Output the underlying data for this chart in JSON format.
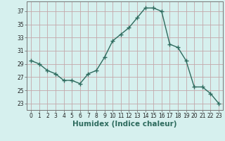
{
  "x": [
    0,
    1,
    2,
    3,
    4,
    5,
    6,
    7,
    8,
    9,
    10,
    11,
    12,
    13,
    14,
    15,
    16,
    17,
    18,
    19,
    20,
    21,
    22,
    23
  ],
  "y": [
    29.5,
    29.0,
    28.0,
    27.5,
    26.5,
    26.5,
    26.0,
    27.5,
    28.0,
    30.0,
    32.5,
    33.5,
    34.5,
    36.0,
    37.5,
    37.5,
    37.0,
    32.0,
    31.5,
    29.5,
    25.5,
    25.5,
    24.5,
    23.0
  ],
  "line_color": "#2e6b5e",
  "marker": "+",
  "marker_size": 4,
  "marker_linewidth": 1.0,
  "bg_color": "#d6f0ee",
  "grid_color": "#c4a8aa",
  "xlabel": "Humidex (Indice chaleur)",
  "xlim": [
    -0.5,
    23.5
  ],
  "ylim": [
    22.0,
    38.5
  ],
  "yticks": [
    23,
    25,
    27,
    29,
    31,
    33,
    35,
    37
  ],
  "xticks": [
    0,
    1,
    2,
    3,
    4,
    5,
    6,
    7,
    8,
    9,
    10,
    11,
    12,
    13,
    14,
    15,
    16,
    17,
    18,
    19,
    20,
    21,
    22,
    23
  ],
  "tick_fontsize": 5.5,
  "xlabel_fontsize": 7.5,
  "line_width": 1.0
}
